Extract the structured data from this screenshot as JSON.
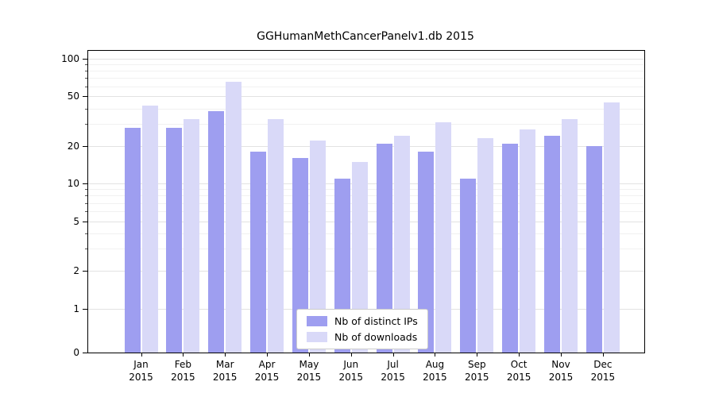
{
  "chart_data": {
    "type": "bar",
    "title": "GGHumanMethCancerPanelv1.db 2015",
    "categories": [
      "Jan",
      "Feb",
      "Mar",
      "Apr",
      "May",
      "Jun",
      "Jul",
      "Aug",
      "Sep",
      "Oct",
      "Nov",
      "Dec"
    ],
    "x_year_label": "2015",
    "series": [
      {
        "name": "Nb of distinct IPs",
        "color": "#9e9ef0",
        "values": [
          28,
          28,
          38,
          18,
          16,
          11,
          21,
          18,
          11,
          21,
          24,
          20
        ]
      },
      {
        "name": "Nb of downloads",
        "color": "#d9d9f8",
        "values": [
          42,
          33,
          65,
          33,
          22,
          15,
          24,
          31,
          23,
          27,
          33,
          45
        ]
      }
    ],
    "yticks": [
      0,
      1,
      2,
      5,
      10,
      20,
      50,
      100
    ],
    "ylim": [
      0,
      100
    ],
    "yscale": "log (symlog, linear below 1)",
    "grid": true,
    "legend_position": "lower center"
  }
}
